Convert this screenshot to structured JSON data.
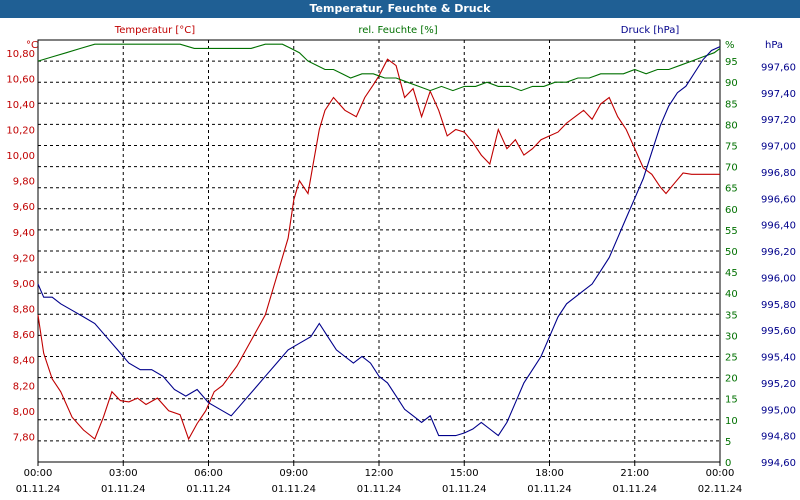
{
  "colors": {
    "temp": "#c00000",
    "hum": "#007000",
    "press": "#00008b",
    "title_bg": "#1f5f94"
  },
  "chart_data": {
    "type": "line",
    "title": "Temperatur, Feuchte & Druck",
    "x_hours": [
      0,
      24
    ],
    "x_ticks": [
      {
        "h": 0,
        "time": "00:00",
        "date": "01.11.24"
      },
      {
        "h": 3,
        "time": "03:00",
        "date": "01.11.24"
      },
      {
        "h": 6,
        "time": "06:00",
        "date": "01.11.24"
      },
      {
        "h": 9,
        "time": "09:00",
        "date": "01.11.24"
      },
      {
        "h": 12,
        "time": "12:00",
        "date": "01.11.24"
      },
      {
        "h": 15,
        "time": "15:00",
        "date": "01.11.24"
      },
      {
        "h": 18,
        "time": "18:00",
        "date": "01.11.24"
      },
      {
        "h": 21,
        "time": "21:00",
        "date": "01.11.24"
      },
      {
        "h": 24,
        "time": "00:00",
        "date": "02.11.24"
      }
    ],
    "axes": {
      "temp": {
        "label": "Temperatur [°C]",
        "unit": "°C",
        "min": 7.6,
        "max": 10.9,
        "ticks": [
          "7,80",
          "8,00",
          "8,20",
          "8,40",
          "8,60",
          "8,80",
          "9,00",
          "9,20",
          "9,40",
          "9,60",
          "9,80",
          "10,00",
          "10,20",
          "10,40",
          "10,60",
          "10,80"
        ]
      },
      "hum": {
        "label": "rel. Feuchte [%]",
        "unit": "%",
        "min": 0,
        "max": 100,
        "ticks": [
          "0",
          "5",
          "10",
          "15",
          "20",
          "25",
          "30",
          "35",
          "40",
          "45",
          "50",
          "55",
          "60",
          "65",
          "70",
          "75",
          "80",
          "85",
          "90",
          "95",
          "%"
        ]
      },
      "press": {
        "label": "Druck [hPa]",
        "unit": "hPa",
        "min": 994.6,
        "max": 997.8,
        "ticks": [
          "994,60",
          "994,80",
          "995,00",
          "995,20",
          "995,40",
          "995,60",
          "995,80",
          "996,00",
          "996,20",
          "996,40",
          "996,60",
          "996,80",
          "997,00",
          "997,20",
          "997,40",
          "997,60"
        ]
      }
    },
    "series": [
      {
        "name": "Temperatur",
        "axis": "temp",
        "color": "#c00000",
        "x": [
          0,
          0.2,
          0.5,
          0.8,
          1.2,
          1.6,
          2,
          2.3,
          2.6,
          2.9,
          3.2,
          3.5,
          3.8,
          4.2,
          4.6,
          5,
          5.3,
          5.6,
          5.9,
          6.2,
          6.5,
          7,
          7.5,
          8,
          8.4,
          8.8,
          9,
          9.2,
          9.5,
          9.7,
          9.9,
          10.1,
          10.4,
          10.8,
          11.2,
          11.5,
          11.8,
          12,
          12.3,
          12.6,
          12.9,
          13.2,
          13.5,
          13.8,
          14.1,
          14.4,
          14.7,
          15,
          15.3,
          15.6,
          15.9,
          16.2,
          16.5,
          16.8,
          17.1,
          17.4,
          17.7,
          18,
          18.3,
          18.6,
          18.9,
          19.2,
          19.5,
          19.8,
          20.1,
          20.4,
          20.7,
          21,
          21.3,
          21.6,
          21.9,
          22.1,
          22.4,
          22.7,
          23,
          23.3,
          23.6,
          24
        ],
        "values": [
          8.75,
          8.45,
          8.25,
          8.15,
          7.95,
          7.85,
          7.78,
          7.95,
          8.15,
          8.08,
          8.07,
          8.1,
          8.05,
          8.1,
          8.0,
          7.97,
          7.78,
          7.9,
          8.0,
          8.15,
          8.2,
          8.35,
          8.55,
          8.75,
          9.05,
          9.35,
          9.65,
          9.8,
          9.7,
          9.95,
          10.2,
          10.35,
          10.45,
          10.35,
          10.3,
          10.45,
          10.55,
          10.62,
          10.75,
          10.7,
          10.45,
          10.52,
          10.3,
          10.5,
          10.35,
          10.15,
          10.2,
          10.18,
          10.1,
          10.0,
          9.93,
          10.2,
          10.05,
          10.12,
          10.0,
          10.05,
          10.12,
          10.15,
          10.18,
          10.25,
          10.3,
          10.35,
          10.28,
          10.4,
          10.45,
          10.3,
          10.2,
          10.05,
          9.9,
          9.85,
          9.75,
          9.7,
          9.78,
          9.86,
          9.85,
          9.85,
          9.85,
          9.85
        ]
      },
      {
        "name": "rel. Feuchte",
        "axis": "hum",
        "color": "#007000",
        "x": [
          0,
          0.5,
          1,
          1.5,
          2,
          2.5,
          3,
          3.5,
          4,
          4.5,
          5,
          5.5,
          6,
          6.5,
          7,
          7.5,
          8,
          8.3,
          8.6,
          8.9,
          9.2,
          9.5,
          9.8,
          10.1,
          10.4,
          10.7,
          11,
          11.4,
          11.8,
          12.2,
          12.6,
          13,
          13.4,
          13.8,
          14.2,
          14.6,
          15,
          15.4,
          15.8,
          16.2,
          16.6,
          17,
          17.4,
          17.8,
          18.2,
          18.6,
          19,
          19.4,
          19.8,
          20.2,
          20.6,
          21,
          21.4,
          21.8,
          22.2,
          22.6,
          23,
          23.4,
          23.8,
          24
        ],
        "values": [
          95,
          96,
          97,
          98,
          99,
          99,
          99,
          99,
          99,
          99,
          99,
          98,
          98,
          98,
          98,
          98,
          99,
          99,
          99,
          98,
          97,
          95,
          94,
          93,
          93,
          92,
          91,
          92,
          92,
          91,
          91,
          90,
          89,
          88,
          89,
          88,
          89,
          89,
          90,
          89,
          89,
          88,
          89,
          89,
          90,
          90,
          91,
          91,
          92,
          92,
          92,
          93,
          92,
          93,
          93,
          94,
          95,
          96,
          97,
          98
        ]
      },
      {
        "name": "Druck",
        "axis": "press",
        "color": "#00008b",
        "x": [
          0,
          0.2,
          0.5,
          0.8,
          1.2,
          1.6,
          2,
          2.4,
          2.8,
          3.2,
          3.6,
          4,
          4.4,
          4.8,
          5.2,
          5.6,
          6,
          6.4,
          6.8,
          7.2,
          7.6,
          8,
          8.4,
          8.8,
          9.2,
          9.6,
          9.9,
          10.2,
          10.5,
          10.8,
          11.1,
          11.4,
          11.7,
          12,
          12.3,
          12.6,
          12.9,
          13.2,
          13.5,
          13.8,
          14.1,
          14.4,
          14.7,
          15,
          15.3,
          15.6,
          15.9,
          16.2,
          16.5,
          16.8,
          17.1,
          17.4,
          17.7,
          18,
          18.3,
          18.6,
          18.9,
          19.2,
          19.5,
          19.8,
          20.1,
          20.4,
          20.7,
          21,
          21.3,
          21.6,
          21.9,
          22.2,
          22.5,
          22.8,
          23.1,
          23.4,
          23.7,
          24
        ],
        "values": [
          995.95,
          995.85,
          995.85,
          995.8,
          995.75,
          995.7,
          995.65,
          995.55,
          995.45,
          995.35,
          995.3,
          995.3,
          995.25,
          995.15,
          995.1,
          995.15,
          995.05,
          995.0,
          994.95,
          995.05,
          995.15,
          995.25,
          995.35,
          995.45,
          995.5,
          995.55,
          995.65,
          995.55,
          995.45,
          995.4,
          995.35,
          995.4,
          995.35,
          995.25,
          995.2,
          995.1,
          995.0,
          994.95,
          994.9,
          994.95,
          994.8,
          994.8,
          994.8,
          994.82,
          994.85,
          994.9,
          994.85,
          994.8,
          994.9,
          995.05,
          995.2,
          995.3,
          995.4,
          995.55,
          995.7,
          995.8,
          995.85,
          995.9,
          995.95,
          996.05,
          996.15,
          996.3,
          996.45,
          996.6,
          996.75,
          996.95,
          997.15,
          997.3,
          997.4,
          997.45,
          997.55,
          997.65,
          997.72,
          997.75
        ]
      }
    ]
  }
}
